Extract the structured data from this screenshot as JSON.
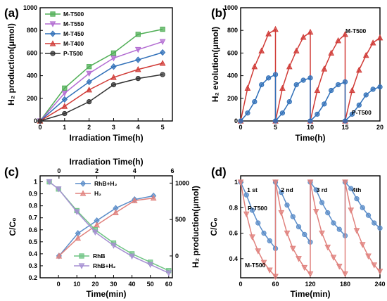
{
  "colors": {
    "green": "#4fae55",
    "purple": "#b26bd1",
    "blue": "#2f6fb8",
    "red": "#d03a36",
    "black": "#303030",
    "steel": "#5a8cc8",
    "pink": "#e0817d",
    "lightgreen": "#6fc484",
    "lavender": "#a58fd2"
  },
  "chart_data": [
    {
      "panel": "(a)",
      "type": "line",
      "xlabel": "Irradiation Time(h)",
      "ylabel": "H₂ production(μmol)",
      "xlim": [
        0,
        5.4
      ],
      "ylim": [
        0,
        1000
      ],
      "xticks": [
        0,
        1,
        2,
        3,
        4,
        5
      ],
      "yticks": [
        0,
        200,
        400,
        600,
        800,
        1000
      ],
      "legend_position": "top-left",
      "x": [
        0,
        1,
        2,
        3,
        4,
        5
      ],
      "series": [
        {
          "name": "M-T500",
          "color": "green",
          "marker": "square",
          "values": [
            0,
            290,
            480,
            600,
            765,
            810
          ]
        },
        {
          "name": "M-T550",
          "color": "purple",
          "marker": "triangle-down",
          "values": [
            0,
            245,
            420,
            555,
            630,
            700
          ]
        },
        {
          "name": "M-T450",
          "color": "blue",
          "marker": "diamond",
          "values": [
            0,
            190,
            345,
            480,
            540,
            605
          ]
        },
        {
          "name": "M-T400",
          "color": "red",
          "marker": "triangle-up",
          "values": [
            0,
            130,
            275,
            385,
            455,
            510
          ]
        },
        {
          "name": "P-T500",
          "color": "black",
          "marker": "circle",
          "values": [
            0,
            65,
            170,
            320,
            375,
            410
          ]
        }
      ]
    },
    {
      "panel": "(b)",
      "type": "line",
      "xlabel": "Time(h)",
      "ylabel": "H₂ evolution(μmol)",
      "xlim": [
        0,
        20
      ],
      "ylim": [
        0,
        1000
      ],
      "xticks": [
        0,
        5,
        10,
        15,
        20
      ],
      "yticks": [
        0,
        200,
        400,
        600,
        800,
        1000
      ],
      "series": [
        {
          "name": "M-T500",
          "color": "red",
          "marker": "triangle-up",
          "cycles": [
            {
              "x": [
                0,
                1,
                2,
                3,
                4,
                5
              ],
              "y": [
                0,
                290,
                480,
                620,
                770,
                810
              ]
            },
            {
              "x": [
                5,
                6,
                7,
                8,
                9,
                10
              ],
              "y": [
                0,
                290,
                480,
                620,
                740,
                785
              ]
            },
            {
              "x": [
                10,
                11,
                12,
                13,
                14,
                15
              ],
              "y": [
                0,
                270,
                460,
                600,
                710,
                765
              ]
            },
            {
              "x": [
                15,
                16,
                17,
                18,
                19,
                20
              ],
              "y": [
                0,
                270,
                450,
                580,
                690,
                735
              ]
            }
          ]
        },
        {
          "name": "P-T500",
          "color": "blue",
          "marker": "circle",
          "cycles": [
            {
              "x": [
                0,
                1,
                2,
                3,
                4,
                5
              ],
              "y": [
                0,
                70,
                170,
                320,
                380,
                410
              ]
            },
            {
              "x": [
                5,
                6,
                7,
                8,
                9,
                10
              ],
              "y": [
                0,
                70,
                170,
                320,
                360,
                380
              ]
            },
            {
              "x": [
                10,
                11,
                12,
                13,
                14,
                15
              ],
              "y": [
                0,
                60,
                150,
                270,
                320,
                345
              ]
            },
            {
              "x": [
                15,
                16,
                17,
                18,
                19,
                20
              ],
              "y": [
                0,
                60,
                140,
                230,
                280,
                300
              ]
            }
          ]
        }
      ]
    },
    {
      "panel": "(c)",
      "type": "line",
      "xlabel": "Time(min)",
      "ylabel": "C/C₀",
      "top_xlabel": "Irradiation Time(h)",
      "right_ylabel": "H₂ production(μmol)",
      "xlim": [
        -10,
        62
      ],
      "ylim": [
        0.2,
        1.05
      ],
      "xticks": [
        0,
        10,
        20,
        30,
        40,
        50,
        60
      ],
      "yticks": [
        0.2,
        0.3,
        0.4,
        0.5,
        0.6,
        0.7,
        0.8,
        0.9,
        1.0
      ],
      "top_xlim": [
        -1,
        6
      ],
      "top_xticks": [
        0,
        2,
        4,
        6
      ],
      "right_ylim": [
        -300,
        1100
      ],
      "right_yticks": [
        0,
        500,
        1000
      ],
      "legend_top": [
        "RhB+H₂",
        "H₂"
      ],
      "legend_bottom": [
        "RhB",
        "RhB+H₂"
      ],
      "series": [
        {
          "name": "RhB+H₂",
          "axis": "top-right",
          "color": "steel",
          "marker": "diamond",
          "x": [
            0,
            1,
            2,
            3,
            4,
            5
          ],
          "y": [
            0,
            310,
            485,
            655,
            775,
            825
          ]
        },
        {
          "name": "H₂",
          "axis": "top-right",
          "color": "pink",
          "marker": "triangle-up",
          "x": [
            0,
            1,
            2,
            3,
            4,
            5
          ],
          "y": [
            0,
            245,
            425,
            595,
            760,
            795
          ]
        },
        {
          "name": "RhB",
          "axis": "bottom-left",
          "color": "lightgreen",
          "marker": "square",
          "x": [
            -5,
            0,
            10,
            20,
            30,
            40,
            50,
            60
          ],
          "y": [
            1.0,
            0.94,
            0.76,
            0.6,
            0.49,
            0.4,
            0.33,
            0.26
          ]
        },
        {
          "name": "RhB+H₂",
          "axis": "bottom-left",
          "color": "lavender",
          "marker": "triangle-down",
          "x": [
            -5,
            0,
            10,
            20,
            30,
            40,
            50,
            60
          ],
          "y": [
            1.0,
            0.94,
            0.75,
            0.58,
            0.47,
            0.38,
            0.31,
            0.24
          ]
        }
      ]
    },
    {
      "panel": "(d)",
      "type": "line",
      "xlabel": "Time(min)",
      "ylabel": "C/C₀",
      "xlim": [
        0,
        240
      ],
      "ylim": [
        0.25,
        1.05
      ],
      "xticks": [
        0,
        60,
        120,
        180,
        240
      ],
      "yticks": [
        0.4,
        0.6,
        0.8,
        1.0
      ],
      "cycle_labels": [
        "1 st",
        "2 nd",
        "3 rd",
        "4th"
      ],
      "series": [
        {
          "name": "P-T500",
          "color": "steel",
          "marker": "circle",
          "cycles": [
            {
              "x": [
                0,
                10,
                20,
                30,
                40,
                50,
                60
              ],
              "y": [
                1.0,
                0.9,
                0.78,
                0.68,
                0.6,
                0.54,
                0.48
              ]
            },
            {
              "x": [
                60,
                70,
                80,
                90,
                100,
                110,
                120
              ],
              "y": [
                1.0,
                0.92,
                0.82,
                0.73,
                0.65,
                0.59,
                0.53
              ]
            },
            {
              "x": [
                120,
                130,
                140,
                150,
                160,
                170,
                180
              ],
              "y": [
                1.0,
                0.94,
                0.84,
                0.76,
                0.68,
                0.63,
                0.58
              ]
            },
            {
              "x": [
                180,
                190,
                200,
                210,
                220,
                230,
                240
              ],
              "y": [
                1.0,
                0.95,
                0.87,
                0.8,
                0.74,
                0.68,
                0.64
              ]
            }
          ]
        },
        {
          "name": "M-T500",
          "color": "pink",
          "marker": "triangle-down",
          "cycles": [
            {
              "x": [
                0,
                10,
                20,
                30,
                40,
                50,
                60
              ],
              "y": [
                1.0,
                0.75,
                0.57,
                0.46,
                0.37,
                0.31,
                0.26
              ]
            },
            {
              "x": [
                60,
                70,
                80,
                90,
                100,
                110,
                120
              ],
              "y": [
                1.0,
                0.76,
                0.6,
                0.48,
                0.4,
                0.33,
                0.28
              ]
            },
            {
              "x": [
                120,
                130,
                140,
                150,
                160,
                170,
                180
              ],
              "y": [
                1.0,
                0.77,
                0.6,
                0.49,
                0.41,
                0.34,
                0.28
              ]
            },
            {
              "x": [
                180,
                190,
                200,
                210,
                220,
                230,
                240
              ],
              "y": [
                1.0,
                0.78,
                0.62,
                0.51,
                0.42,
                0.35,
                0.3
              ]
            }
          ]
        }
      ]
    }
  ]
}
